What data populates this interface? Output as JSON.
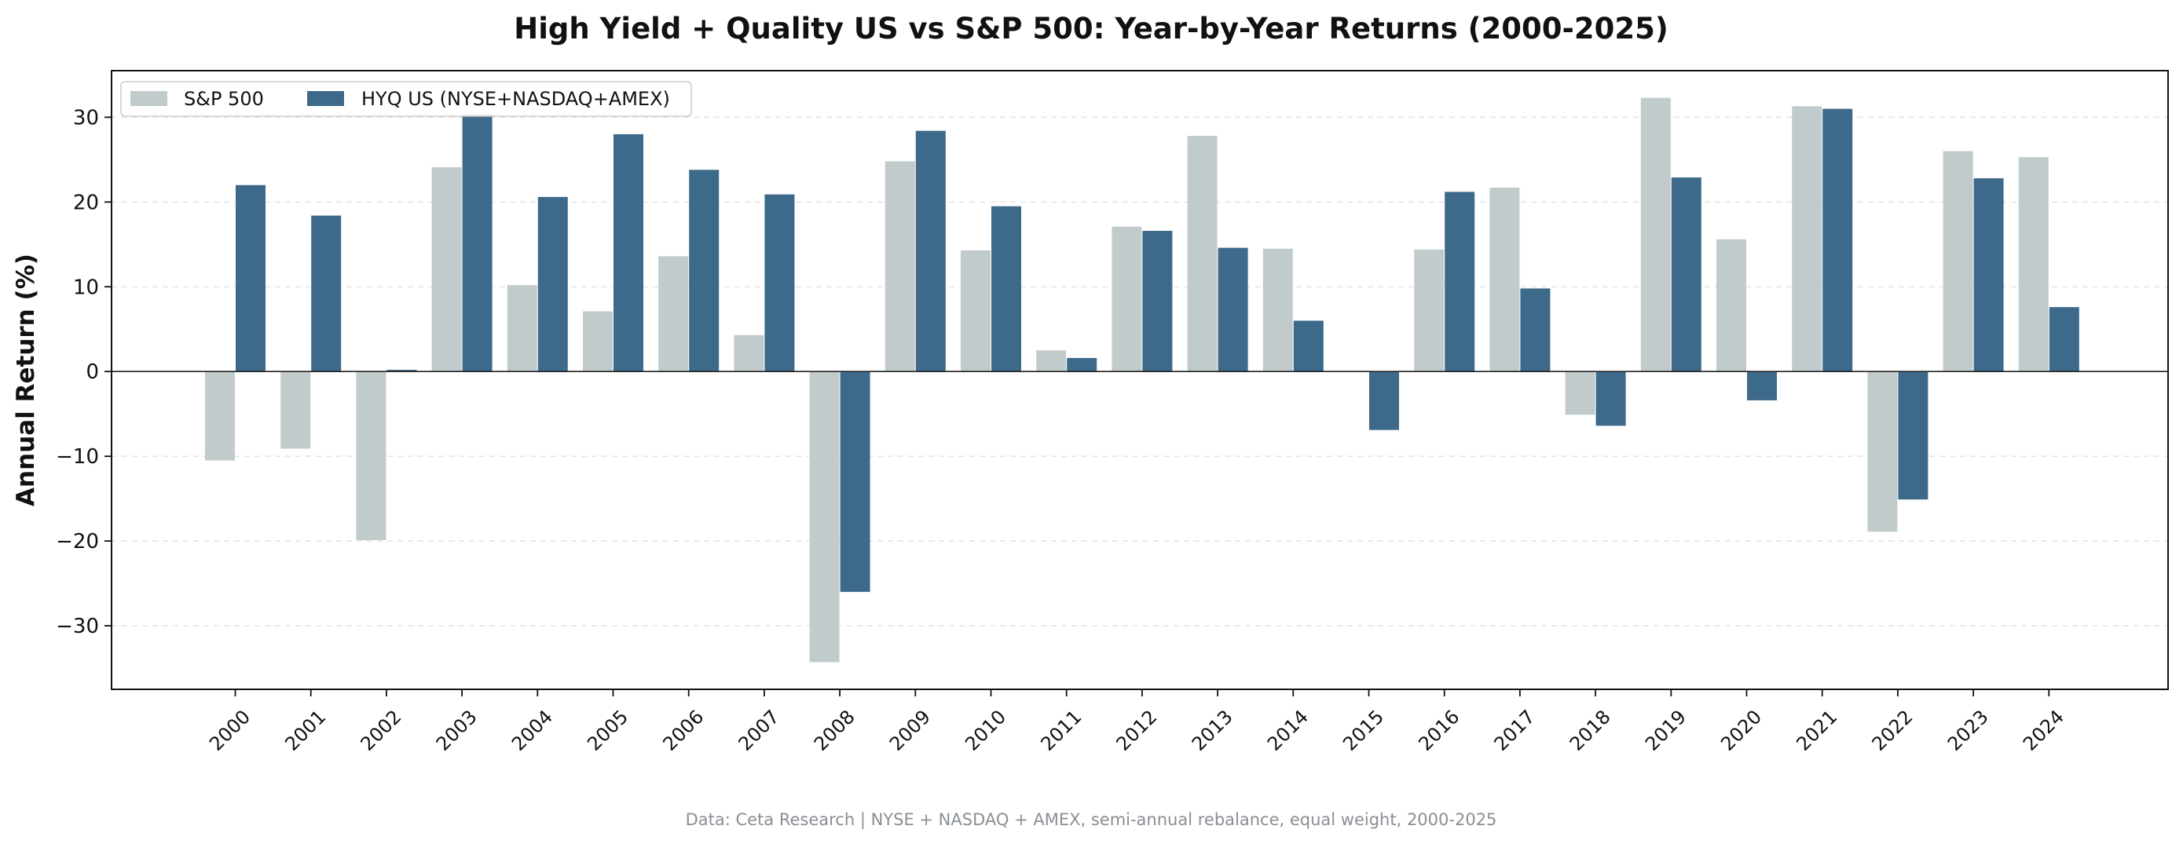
{
  "chart_data": {
    "type": "bar",
    "title": "High Yield + Quality US vs S&P 500: Year-by-Year Returns (2000-2025)",
    "xlabel": "",
    "ylabel": "Annual Return (%)",
    "ylim": [
      -37.5,
      35.5
    ],
    "yticks": [
      -30,
      -20,
      -10,
      0,
      10,
      20,
      30
    ],
    "ytick_labels": [
      "−30",
      "−20",
      "−10",
      "0",
      "10",
      "20",
      "30"
    ],
    "grid": "horizontal dashed",
    "legend_position": "top-left",
    "categories": [
      "2000",
      "2001",
      "2002",
      "2003",
      "2004",
      "2005",
      "2006",
      "2007",
      "2008",
      "2009",
      "2010",
      "2011",
      "2012",
      "2013",
      "2014",
      "2015",
      "2016",
      "2017",
      "2018",
      "2019",
      "2020",
      "2021",
      "2022",
      "2023",
      "2024"
    ],
    "series": [
      {
        "name": "S&P 500",
        "color": "#c2cbcc",
        "values": [
          -10.5,
          -9.1,
          -19.9,
          24.1,
          10.2,
          7.1,
          13.6,
          4.3,
          -34.3,
          24.8,
          14.3,
          2.5,
          17.1,
          27.8,
          14.5,
          0.0,
          14.4,
          21.7,
          -5.1,
          32.3,
          15.6,
          31.3,
          -18.9,
          26.0,
          25.3
        ]
      },
      {
        "name": "HYQ US (NYSE+NASDAQ+AMEX)",
        "color": "#3d6a8a",
        "values": [
          22.0,
          18.4,
          0.2,
          30.3,
          20.6,
          28.0,
          23.8,
          20.9,
          -26.0,
          28.4,
          19.5,
          1.6,
          16.6,
          14.6,
          6.0,
          -6.9,
          21.2,
          9.8,
          -6.4,
          22.9,
          -3.4,
          31.0,
          -15.1,
          22.8,
          7.6
        ]
      }
    ],
    "source_note": "Data: Ceta Research | NYSE + NASDAQ + AMEX, semi-annual rebalance, equal weight, 2000-2025"
  }
}
